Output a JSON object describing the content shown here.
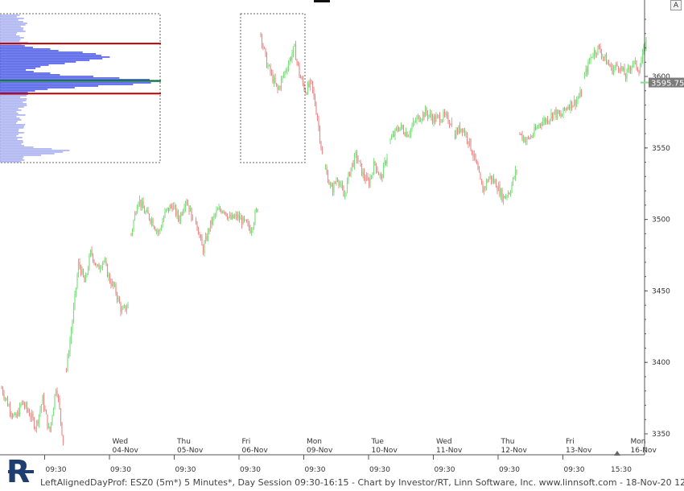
{
  "footer_text": "LeftAlignedDayProf: ESZ0 (5m*) 5 Minutes*, Day Session 09:30-16:15 - Chart by Investor/RT, Linn Software, Inc. www.linnsoft.com - 18-Nov-20 12:51:13",
  "corner_button_label": "A",
  "logo_letter": "R",
  "price_tag": "3595.75",
  "colors": {
    "up": "#7fe07f",
    "down": "#f08a8a",
    "profile": "#4a5ae8",
    "profile_light": "#a9b0f0",
    "value_lines": "#c00000",
    "poc_line": "#0a7a2a",
    "axis": "#555555"
  },
  "chart_data": {
    "type": "candlestick",
    "y_ticks": [
      3350,
      3400,
      3450,
      3500,
      3550,
      3600
    ],
    "ylim": [
      3337,
      3647
    ],
    "last_price": 3595.75,
    "days": [
      {
        "weekday": "",
        "date": "",
        "session": [
          3382,
          3370,
          3360,
          3372,
          3365,
          3355,
          3374,
          3350,
          3385,
          3345
        ]
      },
      {
        "weekday": "Wed",
        "date": "04-Nov",
        "session": [
          3395,
          3430,
          3470,
          3455,
          3478,
          3465,
          3472,
          3458,
          3450,
          3435,
          3440
        ]
      },
      {
        "weekday": "Thu",
        "date": "05-Nov",
        "session": [
          3490,
          3515,
          3505,
          3500,
          3490,
          3505,
          3510,
          3500,
          3515,
          3500
        ]
      },
      {
        "weekday": "Fri",
        "date": "06-Nov",
        "session": [
          3500,
          3478,
          3495,
          3505,
          3508,
          3500,
          3502,
          3498,
          3493,
          3508
        ]
      },
      {
        "weekday": "Mon",
        "date": "09-Nov",
        "session": [
          3630,
          3610,
          3600,
          3590,
          3600,
          3610,
          3620,
          3600,
          3590,
          3595,
          3575,
          3545
        ]
      },
      {
        "weekday": "Tue",
        "date": "10-Nov",
        "session": [
          3535,
          3520,
          3530,
          3515,
          3535,
          3545,
          3532,
          3525,
          3540,
          3528,
          3545
        ]
      },
      {
        "weekday": "Wed",
        "date": "11-Nov",
        "session": [
          3555,
          3565,
          3560,
          3570,
          3575,
          3570,
          3572,
          3568
        ]
      },
      {
        "weekday": "Thu",
        "date": "12-Nov",
        "session": [
          3560,
          3565,
          3555,
          3540,
          3520,
          3530,
          3525,
          3515,
          3520,
          3535
        ]
      },
      {
        "weekday": "Fri",
        "date": "13-Nov",
        "session": [
          3560,
          3555,
          3560,
          3568,
          3570,
          3575,
          3572,
          3580,
          3582,
          3588
        ]
      },
      {
        "weekday": "Mon",
        "date": "16-Nov",
        "session": [
          3600,
          3615,
          3620,
          3612,
          3605,
          3608,
          3600,
          3610,
          3605,
          3625
        ]
      }
    ],
    "x_time_labels": [
      "09:30",
      "09:30",
      "09:30",
      "09:30",
      "09:30",
      "09:30",
      "09:30",
      "09:30",
      "09:30",
      "15:30"
    ],
    "profiles": [
      {
        "value_high": 3623,
        "poc": 3597,
        "value_low": 3588,
        "top": 3637,
        "bottom": 3533
      },
      {
        "top": 3637,
        "bottom": 3533
      }
    ]
  }
}
